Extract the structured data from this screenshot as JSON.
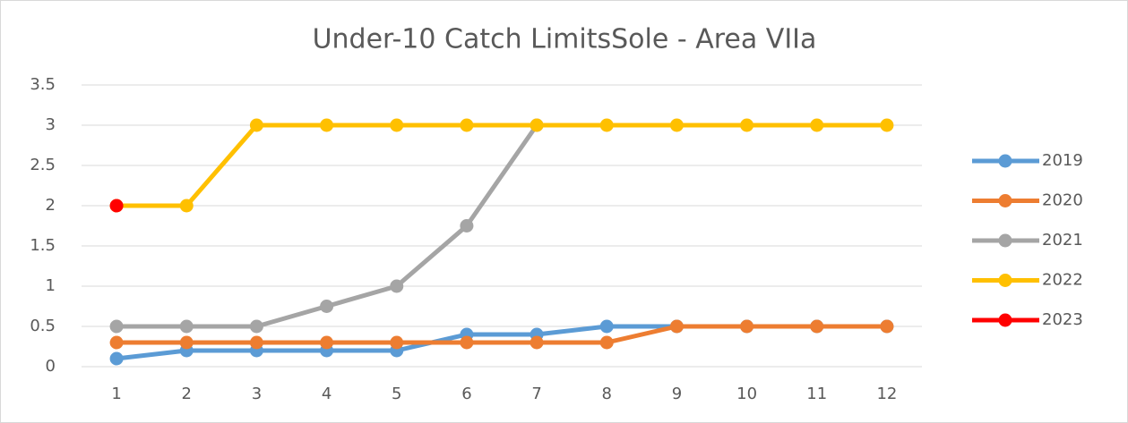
{
  "chart_data": {
    "type": "line",
    "title": "Under-10 Catch LimitsSole - Area VIIa",
    "categories": [
      "1",
      "2",
      "3",
      "4",
      "5",
      "6",
      "7",
      "8",
      "9",
      "10",
      "11",
      "12"
    ],
    "series": [
      {
        "name": "2019",
        "color": "#5b9bd5",
        "values": [
          0.1,
          0.2,
          0.2,
          0.2,
          0.2,
          0.4,
          0.4,
          0.5,
          0.5,
          0.5,
          0.5,
          0.5
        ]
      },
      {
        "name": "2020",
        "color": "#ed7d31",
        "values": [
          0.3,
          0.3,
          0.3,
          0.3,
          0.3,
          0.3,
          0.3,
          0.3,
          0.5,
          0.5,
          0.5,
          0.5
        ]
      },
      {
        "name": "2021",
        "color": "#a5a5a5",
        "values": [
          0.5,
          0.5,
          0.5,
          0.75,
          1,
          1.75,
          3,
          null,
          null,
          null,
          null,
          null
        ]
      },
      {
        "name": "2022",
        "color": "#ffc000",
        "values": [
          2,
          2,
          3,
          3,
          3,
          3,
          3,
          3,
          3,
          3,
          3,
          3
        ]
      },
      {
        "name": "2023",
        "color": "#ff0000",
        "values": [
          2,
          null,
          null,
          null,
          null,
          null,
          null,
          null,
          null,
          null,
          null,
          null
        ]
      }
    ],
    "ylim": [
      0,
      3.5
    ],
    "yticks": [
      0,
      0.5,
      1,
      1.5,
      2,
      2.5,
      3,
      3.5
    ],
    "grid": true,
    "legend": "right"
  }
}
